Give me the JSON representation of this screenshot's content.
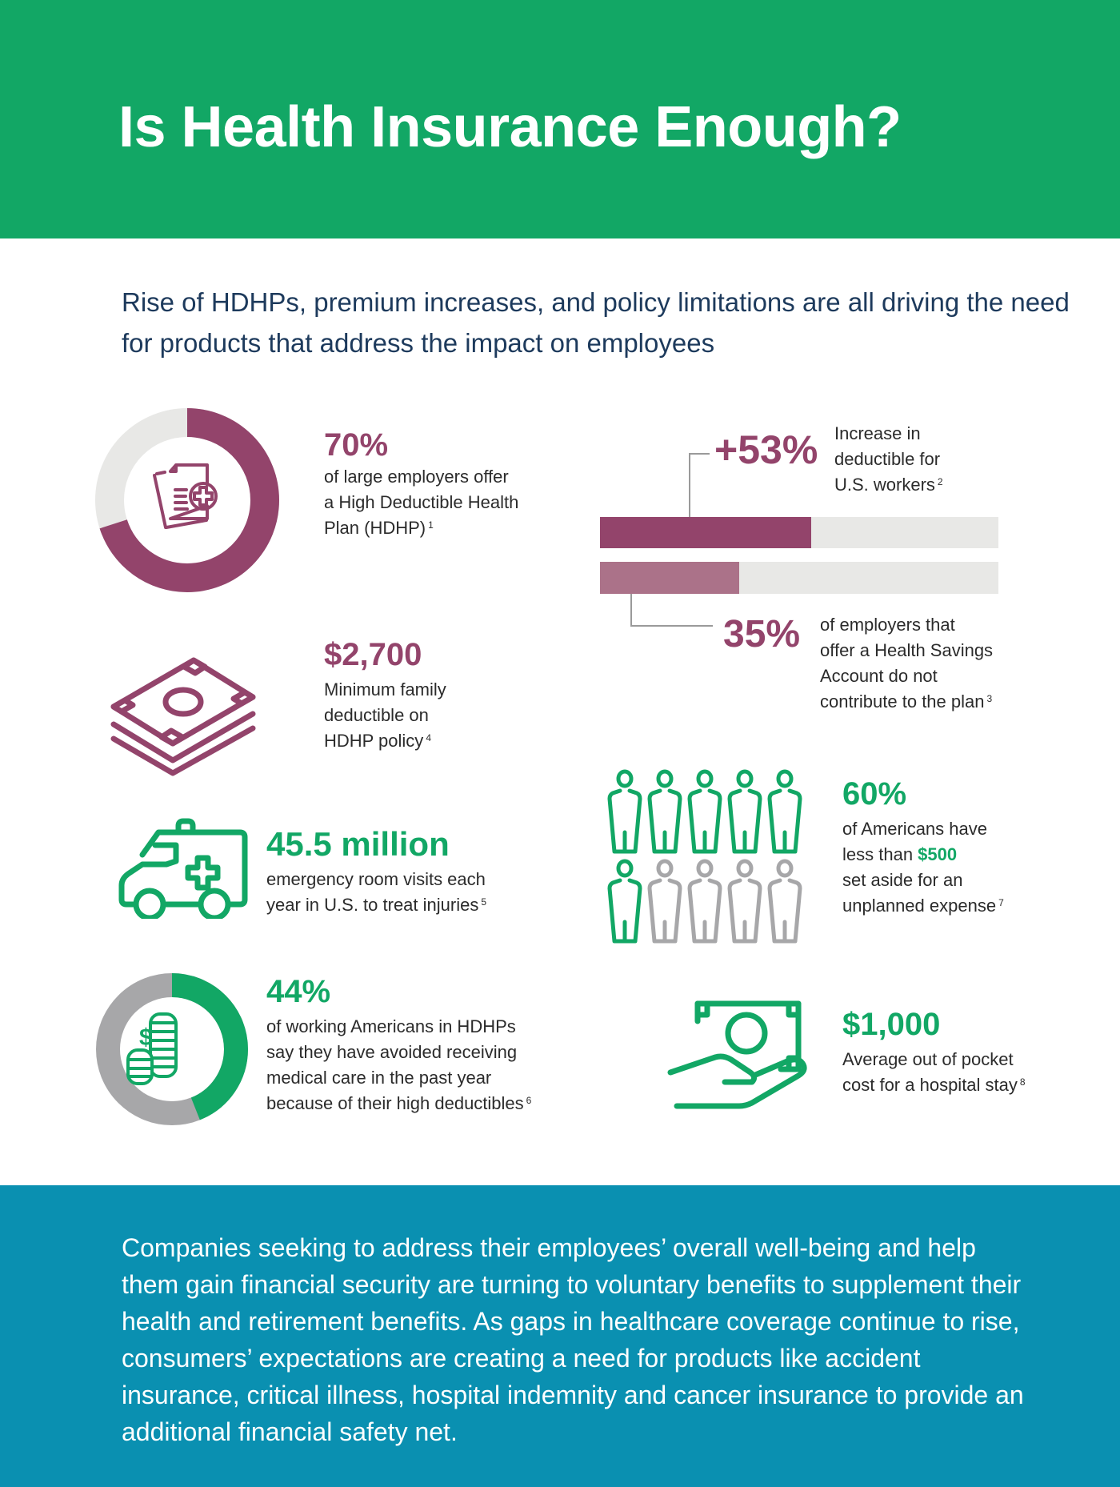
{
  "header": {
    "title": "Is Health Insurance Enough?"
  },
  "subtitle": "Rise of HDHPs, premium increases, and policy limitations are all driving the need for products that address the impact on employees",
  "colors": {
    "green": "#12a765",
    "purple": "#93446b",
    "light_purple": "#ab7289",
    "blue": "#0a90b1",
    "gray_track": "#e8e8e6",
    "gray_people": "#a7a7a9"
  },
  "stats": {
    "hdhp": {
      "value": "70%",
      "fraction": 0.7,
      "icon": "medical-document-icon",
      "lines": [
        "of large employers offer",
        "a High Deductible Health",
        "Plan (HDHP)"
      ],
      "footnote": "1"
    },
    "deductible_increase": {
      "value": "+53%",
      "fraction": 0.53,
      "lines": [
        "Increase in",
        "deductible for",
        "U.S. workers"
      ],
      "footnote": "2"
    },
    "hsa": {
      "value": "35%",
      "fraction": 0.35,
      "lines": [
        "of employers that",
        "offer a Health Savings",
        "Account do not",
        "contribute to the plan"
      ],
      "footnote": "3"
    },
    "min_deductible": {
      "value": "$2,700",
      "icon": "money-stack-icon",
      "lines": [
        "Minimum family",
        "deductible on",
        "HDHP policy"
      ],
      "footnote": "4"
    },
    "er_visits": {
      "value": "45.5 million",
      "icon": "ambulance-icon",
      "lines": [
        "emergency room visits each",
        "year in U.S. to treat injuries"
      ],
      "footnote": "5"
    },
    "avoided_care": {
      "value": "44%",
      "fraction": 0.44,
      "icon": "coins-dollar-icon",
      "lines": [
        "of working Americans in HDHPs",
        "say they have avoided receiving",
        "medical care in the past year",
        "because of their high deductibles"
      ],
      "footnote": "6"
    },
    "savings": {
      "value": "60%",
      "people_highlighted": 6,
      "people_total": 10,
      "line1": "of Americans have",
      "line2_prefix": "less than ",
      "line2_highlight": "$500",
      "line3": "set aside for an",
      "line4": "unplanned expense",
      "footnote": "7"
    },
    "hospital_cost": {
      "value": "$1,000",
      "icon": "hand-holding-money-icon",
      "lines": [
        "Average out of pocket",
        "cost for a hospital stay"
      ],
      "footnote": "8"
    }
  },
  "footer": {
    "text": "Companies seeking to address their employees’ overall well-being and help them gain financial security are turning to voluntary benefits to supplement their health and retirement benefits. As gaps in healthcare coverage continue to rise, consumers’ expectations are creating a need for products like accident insurance, critical illness, hospital indemnity and cancer insurance to provide an additional financial safety net."
  }
}
